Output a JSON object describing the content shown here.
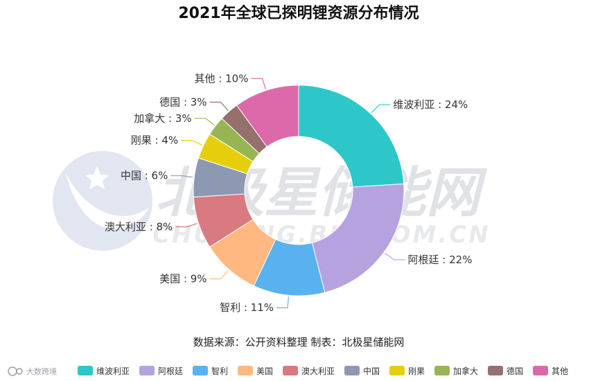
{
  "chart_data": {
    "type": "pie",
    "style": "donut",
    "title": "2021年全球已探明锂资源分布情况",
    "source_note": "数据来源：公开资料整理 制表：北极星储能网",
    "legend_position": "bottom",
    "slices": [
      {
        "name": "维波利亚",
        "value": 24,
        "label": "维波利亚 : 24%",
        "color": "#2ec7c9"
      },
      {
        "name": "阿根廷",
        "value": 22,
        "label": "阿根廷 : 22%",
        "color": "#b6a2de"
      },
      {
        "name": "智利",
        "value": 11,
        "label": "智利 : 11%",
        "color": "#5ab1ef"
      },
      {
        "name": "美国",
        "value": 9,
        "label": "美国 : 9%",
        "color": "#ffb980"
      },
      {
        "name": "澳大利亚",
        "value": 8,
        "label": "澳大利亚 : 8%",
        "color": "#d87a80"
      },
      {
        "name": "中国",
        "value": 6,
        "label": "中国 : 6%",
        "color": "#8d98b3"
      },
      {
        "name": "刚果",
        "value": 4,
        "label": "刚果 : 4%",
        "color": "#e5cf0d"
      },
      {
        "name": "加拿大",
        "value": 3,
        "label": "加拿大 : 3%",
        "color": "#97b552"
      },
      {
        "name": "德国",
        "value": 3,
        "label": "德国 : 3%",
        "color": "#95706d"
      },
      {
        "name": "其他",
        "value": 10,
        "label": "其他 : 10%",
        "color": "#dc69aa"
      }
    ]
  },
  "watermark": {
    "text": "北极星储能网",
    "url": "CHUNENG.BJX.COM.CN"
  },
  "brand": {
    "text": "大数跨境"
  }
}
